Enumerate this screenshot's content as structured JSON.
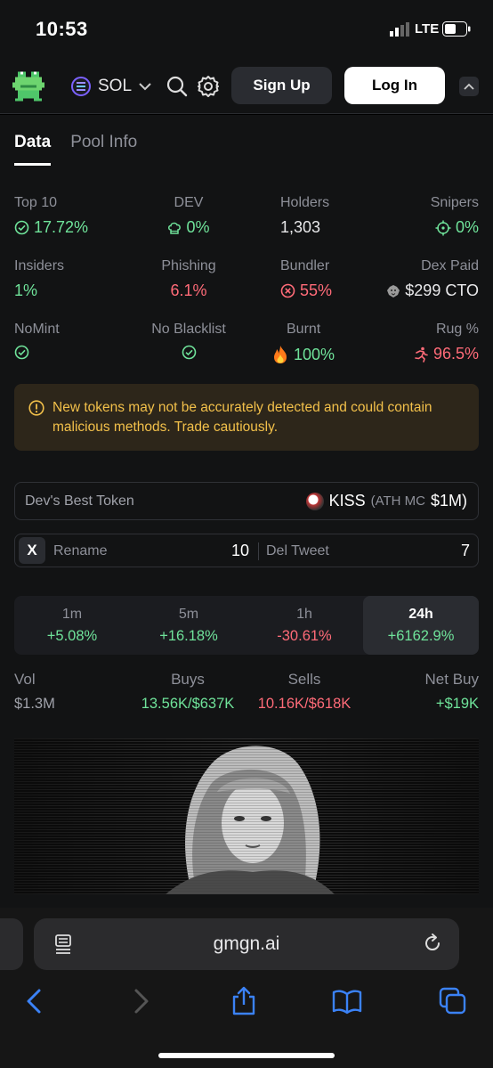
{
  "status_bar": {
    "time": "10:53",
    "network": "LTE"
  },
  "header": {
    "chain": "SOL",
    "signup_label": "Sign Up",
    "login_label": "Log In"
  },
  "tabs": [
    {
      "label": "Data",
      "active": true
    },
    {
      "label": "Pool Info",
      "active": false
    }
  ],
  "stats": {
    "top10": {
      "label": "Top 10",
      "value": "17.72%"
    },
    "dev": {
      "label": "DEV",
      "value": "0%"
    },
    "holders": {
      "label": "Holders",
      "value": "1,303"
    },
    "snipers": {
      "label": "Snipers",
      "value": "0%"
    },
    "insiders": {
      "label": "Insiders",
      "value": "1%"
    },
    "phishing": {
      "label": "Phishing",
      "value": "6.1%"
    },
    "bundler": {
      "label": "Bundler",
      "value": "55%"
    },
    "dex_paid": {
      "label": "Dex Paid",
      "value": "$299 CTO"
    },
    "nomint": {
      "label": "NoMint"
    },
    "no_blacklist": {
      "label": "No Blacklist"
    },
    "burnt": {
      "label": "Burnt",
      "value": "100%"
    },
    "rug": {
      "label": "Rug %",
      "value": "96.5%"
    }
  },
  "warning": "New tokens may not be accurately detected and could contain malicious methods. Trade cautiously.",
  "dev_best_token": {
    "label": "Dev's Best Token",
    "token": "KISS",
    "ath_prefix": "(ATH MC",
    "ath_value": "$1M)"
  },
  "twitter": {
    "icon_label": "X",
    "rename_label": "Rename",
    "rename_count": "10",
    "del_label": "Del Tweet",
    "del_count": "7"
  },
  "periods": [
    {
      "label": "1m",
      "change": "+5.08%",
      "color": "#6fe39a"
    },
    {
      "label": "5m",
      "change": "+16.18%",
      "color": "#6fe39a"
    },
    {
      "label": "1h",
      "change": "-30.61%",
      "color": "#ff6b78"
    },
    {
      "label": "24h",
      "change": "+6162.9%",
      "color": "#6fe39a",
      "active": true
    }
  ],
  "volume": {
    "vol_label": "Vol",
    "vol_value": "$1.3M",
    "buys_label": "Buys",
    "buys_value": "13.56K/$637K",
    "sells_label": "Sells",
    "sells_value": "10.16K/$618K",
    "net_label": "Net Buy",
    "net_value": "+$19K"
  },
  "browser": {
    "url": "gmgn.ai"
  },
  "colors": {
    "green": "#6fe39a",
    "red": "#ff6b78",
    "warning": "#f2c04a",
    "accent": "#7b61ff"
  }
}
